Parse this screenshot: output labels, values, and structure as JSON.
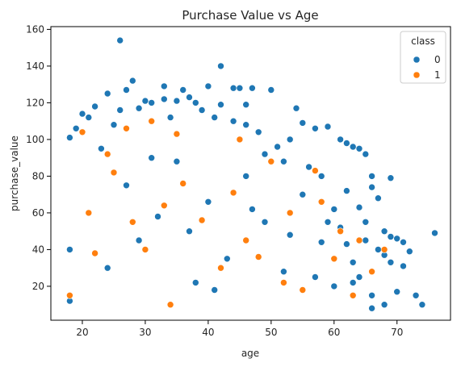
{
  "chart_data": {
    "type": "scatter",
    "title": "Purchase Value vs Age",
    "xlabel": "age",
    "ylabel": "purchase_value",
    "xlim": [
      15,
      78.5
    ],
    "ylim": [
      1.5,
      161.5
    ],
    "xticks": [
      20,
      30,
      40,
      50,
      60,
      70
    ],
    "yticks": [
      20,
      40,
      60,
      80,
      100,
      120,
      140,
      160
    ],
    "legend": {
      "title": "class",
      "position": "upper right"
    },
    "colors": {
      "0": "#1f77b4",
      "1": "#ff7f0e"
    },
    "grid": false,
    "series": [
      {
        "name": "0",
        "points": [
          [
            26,
            154
          ],
          [
            42,
            140
          ],
          [
            28,
            132
          ],
          [
            40,
            129
          ],
          [
            33,
            129
          ],
          [
            44,
            128
          ],
          [
            47,
            128
          ],
          [
            45,
            128
          ],
          [
            27,
            127
          ],
          [
            50,
            127
          ],
          [
            36,
            127
          ],
          [
            22,
            118
          ],
          [
            37,
            123
          ],
          [
            24,
            125
          ],
          [
            30,
            121
          ],
          [
            31,
            120
          ],
          [
            26,
            116
          ],
          [
            38,
            120
          ],
          [
            42,
            119
          ],
          [
            46,
            119
          ],
          [
            33,
            122
          ],
          [
            35,
            121
          ],
          [
            54,
            117
          ],
          [
            20,
            114
          ],
          [
            21,
            112
          ],
          [
            29,
            117
          ],
          [
            39,
            116
          ],
          [
            55,
            109
          ],
          [
            57,
            106
          ],
          [
            59,
            107
          ],
          [
            61,
            100
          ],
          [
            62,
            98
          ],
          [
            63,
            96
          ],
          [
            64,
            95
          ],
          [
            65,
            92
          ],
          [
            66,
            80
          ],
          [
            69,
            79
          ],
          [
            66,
            74
          ],
          [
            67,
            68
          ],
          [
            64,
            63
          ],
          [
            68,
            50
          ],
          [
            69,
            47
          ],
          [
            70,
            46
          ],
          [
            71,
            44
          ],
          [
            72,
            39
          ],
          [
            73,
            15
          ],
          [
            74,
            10
          ],
          [
            76,
            49
          ],
          [
            68,
            37
          ],
          [
            67,
            40
          ],
          [
            69,
            33
          ],
          [
            71,
            31
          ],
          [
            70,
            17
          ],
          [
            66,
            15
          ],
          [
            66,
            8
          ],
          [
            68,
            10
          ],
          [
            65,
            55
          ],
          [
            65,
            45
          ],
          [
            63,
            33
          ],
          [
            63,
            22
          ],
          [
            64,
            25
          ],
          [
            62,
            43
          ],
          [
            61,
            52
          ],
          [
            60,
            62
          ],
          [
            58,
            80
          ],
          [
            56,
            85
          ],
          [
            52,
            88
          ],
          [
            49,
            92
          ],
          [
            51,
            96
          ],
          [
            53,
            100
          ],
          [
            48,
            104
          ],
          [
            46,
            108
          ],
          [
            44,
            110
          ],
          [
            41,
            112
          ],
          [
            34,
            112
          ],
          [
            25,
            108
          ],
          [
            19,
            106
          ],
          [
            18,
            101
          ],
          [
            18,
            40
          ],
          [
            18,
            12
          ],
          [
            21,
            60
          ],
          [
            24,
            30
          ],
          [
            27,
            75
          ],
          [
            29,
            45
          ],
          [
            32,
            58
          ],
          [
            35,
            88
          ],
          [
            38,
            22
          ],
          [
            40,
            66
          ],
          [
            43,
            35
          ],
          [
            46,
            80
          ],
          [
            49,
            55
          ],
          [
            52,
            28
          ],
          [
            55,
            70
          ],
          [
            58,
            44
          ],
          [
            60,
            20
          ],
          [
            62,
            72
          ],
          [
            23,
            95
          ],
          [
            31,
            90
          ],
          [
            37,
            50
          ],
          [
            41,
            18
          ],
          [
            47,
            62
          ],
          [
            53,
            48
          ],
          [
            57,
            25
          ],
          [
            59,
            55
          ]
        ]
      },
      {
        "name": "1",
        "points": [
          [
            20,
            104
          ],
          [
            31,
            110
          ],
          [
            27,
            106
          ],
          [
            35,
            103
          ],
          [
            45,
            100
          ],
          [
            57,
            83
          ],
          [
            64,
            45
          ],
          [
            66,
            28
          ],
          [
            68,
            40
          ],
          [
            21,
            60
          ],
          [
            24,
            92
          ],
          [
            34,
            10
          ],
          [
            18,
            15
          ],
          [
            30,
            40
          ],
          [
            39,
            56
          ],
          [
            44,
            71
          ],
          [
            48,
            36
          ],
          [
            52,
            22
          ],
          [
            58,
            66
          ],
          [
            61,
            50
          ],
          [
            25,
            82
          ],
          [
            33,
            64
          ],
          [
            42,
            30
          ],
          [
            50,
            88
          ],
          [
            55,
            18
          ],
          [
            60,
            35
          ],
          [
            22,
            38
          ],
          [
            28,
            55
          ],
          [
            36,
            76
          ],
          [
            46,
            45
          ],
          [
            53,
            60
          ],
          [
            63,
            15
          ]
        ]
      }
    ]
  }
}
